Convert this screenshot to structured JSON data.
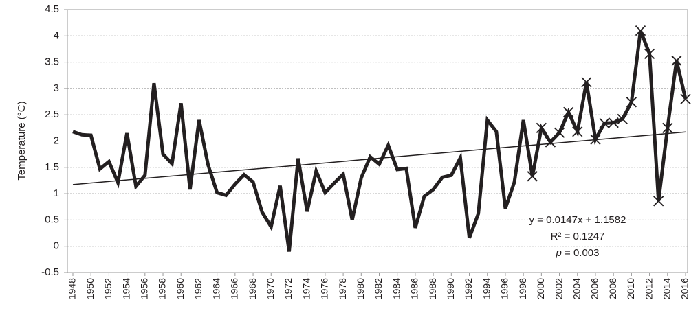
{
  "chart_data": {
    "type": "line",
    "y_label": "Temperature (°C)",
    "x": [
      1948,
      1949,
      1950,
      1951,
      1952,
      1953,
      1954,
      1955,
      1956,
      1957,
      1958,
      1959,
      1960,
      1961,
      1962,
      1963,
      1964,
      1965,
      1966,
      1967,
      1968,
      1969,
      1970,
      1971,
      1972,
      1973,
      1974,
      1975,
      1976,
      1977,
      1978,
      1979,
      1980,
      1981,
      1982,
      1983,
      1984,
      1985,
      1986,
      1987,
      1988,
      1989,
      1990,
      1991,
      1992,
      1993,
      1994,
      1995,
      1996,
      1997,
      1998,
      1999,
      2000,
      2001,
      2002,
      2003,
      2004,
      2005,
      2006,
      2007,
      2008,
      2009,
      2010,
      2011,
      2012,
      2013,
      2014,
      2015,
      2016
    ],
    "series": [
      {
        "color": "#231f20",
        "marker_start": 1999,
        "values": [
          2.18,
          2.12,
          2.11,
          1.47,
          1.61,
          1.21,
          2.15,
          1.14,
          1.35,
          3.1,
          1.75,
          1.57,
          2.72,
          1.08,
          2.4,
          1.55,
          1.02,
          0.97,
          1.18,
          1.36,
          1.22,
          0.65,
          0.37,
          1.15,
          -0.1,
          1.67,
          0.66,
          1.43,
          1.02,
          1.2,
          1.37,
          0.5,
          1.3,
          1.7,
          1.56,
          1.92,
          1.46,
          1.48,
          0.35,
          0.95,
          1.08,
          1.31,
          1.35,
          1.68,
          0.16,
          0.62,
          2.4,
          2.18,
          0.72,
          1.22,
          2.4,
          1.33,
          2.25,
          1.98,
          2.16,
          2.55,
          2.18,
          3.12,
          2.03,
          2.34,
          2.35,
          2.42,
          2.74,
          4.1,
          3.66,
          0.86,
          2.25,
          3.53,
          2.8
        ]
      }
    ],
    "trendline": {
      "slope": 0.0147,
      "intercept": 1.1582,
      "equation": "y = 0.0147x + 1.1582",
      "r_squared": "R² = 0.1247",
      "p_symbol": "p",
      "p_text": " = 0.003"
    },
    "xlim": [
      1948,
      2016
    ],
    "xticks": [
      1948,
      1950,
      1952,
      1954,
      1956,
      1958,
      1960,
      1962,
      1964,
      1966,
      1968,
      1970,
      1972,
      1974,
      1976,
      1978,
      1980,
      1982,
      1984,
      1986,
      1988,
      1990,
      1992,
      1994,
      1996,
      1998,
      2000,
      2002,
      2004,
      2006,
      2008,
      2010,
      2012,
      2014,
      2016
    ],
    "ylim": [
      -0.5,
      4.5
    ],
    "yticks": [
      -0.5,
      0,
      0.5,
      1,
      1.5,
      2,
      2.5,
      3,
      3.5,
      4,
      4.5
    ],
    "grid": true
  }
}
